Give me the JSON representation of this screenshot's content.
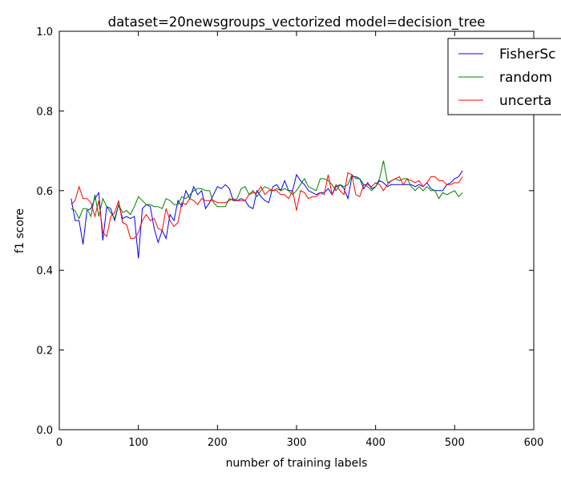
{
  "chart_data": {
    "type": "line",
    "title": "dataset=20newsgroups_vectorized model=decision_tree",
    "xlabel": "number of training labels",
    "ylabel": "f1 score",
    "xlim": [
      0,
      600
    ],
    "ylim": [
      0.0,
      1.0
    ],
    "xticks": [
      "0",
      "100",
      "200",
      "300",
      "400",
      "500",
      "600"
    ],
    "yticks": [
      "0.0",
      "0.2",
      "0.4",
      "0.6",
      "0.8",
      "1.0"
    ],
    "grid": false,
    "legend_position": "top-right",
    "legend_labels": [
      "FisherSc",
      "random",
      "uncerta"
    ],
    "series": [
      {
        "name": "FisherScore",
        "color": "#0000ff",
        "x": [
          15,
          20,
          25,
          30,
          35,
          40,
          45,
          50,
          55,
          60,
          65,
          70,
          75,
          80,
          85,
          90,
          95,
          100,
          105,
          110,
          115,
          120,
          125,
          130,
          135,
          140,
          145,
          150,
          155,
          160,
          165,
          170,
          175,
          180,
          185,
          190,
          195,
          200,
          205,
          210,
          215,
          220,
          225,
          230,
          235,
          240,
          245,
          250,
          255,
          260,
          265,
          270,
          275,
          280,
          285,
          290,
          295,
          300,
          305,
          310,
          315,
          320,
          325,
          330,
          335,
          340,
          345,
          350,
          355,
          360,
          365,
          370,
          375,
          380,
          385,
          390,
          395,
          400,
          405,
          410,
          415,
          420,
          425,
          430,
          435,
          440,
          445,
          450,
          455,
          460,
          465,
          470,
          475,
          480,
          485,
          490,
          495,
          500,
          505,
          510
        ],
        "y": [
          0.58,
          0.525,
          0.525,
          0.465,
          0.55,
          0.555,
          0.58,
          0.595,
          0.475,
          0.56,
          0.555,
          0.525,
          0.565,
          0.53,
          0.535,
          0.53,
          0.535,
          0.43,
          0.555,
          0.565,
          0.56,
          0.505,
          0.47,
          0.5,
          0.48,
          0.54,
          0.525,
          0.575,
          0.56,
          0.6,
          0.58,
          0.61,
          0.59,
          0.6,
          0.555,
          0.57,
          0.59,
          0.61,
          0.605,
          0.615,
          0.605,
          0.575,
          0.575,
          0.58,
          0.575,
          0.56,
          0.555,
          0.6,
          0.585,
          0.575,
          0.57,
          0.61,
          0.615,
          0.6,
          0.625,
          0.6,
          0.6,
          0.64,
          0.625,
          0.615,
          0.6,
          0.595,
          0.59,
          0.595,
          0.595,
          0.605,
          0.59,
          0.61,
          0.615,
          0.605,
          0.58,
          0.635,
          0.635,
          0.63,
          0.605,
          0.62,
          0.605,
          0.61,
          0.625,
          0.62,
          0.61,
          0.615,
          0.615,
          0.615,
          0.615,
          0.615,
          0.615,
          0.61,
          0.615,
          0.61,
          0.62,
          0.605,
          0.6,
          0.6,
          0.6,
          0.615,
          0.62,
          0.63,
          0.635,
          0.65
        ]
      },
      {
        "name": "random",
        "color": "#008000",
        "x": [
          15,
          20,
          25,
          30,
          35,
          40,
          45,
          50,
          55,
          60,
          65,
          70,
          75,
          80,
          85,
          90,
          95,
          100,
          105,
          110,
          115,
          120,
          125,
          130,
          135,
          140,
          145,
          150,
          155,
          160,
          165,
          170,
          175,
          180,
          185,
          190,
          195,
          200,
          205,
          210,
          215,
          220,
          225,
          230,
          235,
          240,
          245,
          250,
          255,
          260,
          265,
          270,
          275,
          280,
          285,
          290,
          295,
          300,
          305,
          310,
          315,
          320,
          325,
          330,
          335,
          340,
          345,
          350,
          355,
          360,
          365,
          370,
          375,
          380,
          385,
          390,
          395,
          400,
          405,
          410,
          415,
          420,
          425,
          430,
          435,
          440,
          445,
          450,
          455,
          460,
          465,
          470,
          475,
          480,
          485,
          490,
          495,
          500,
          505,
          510
        ],
        "y": [
          0.555,
          0.55,
          0.53,
          0.555,
          0.555,
          0.535,
          0.59,
          0.535,
          0.58,
          0.56,
          0.545,
          0.53,
          0.565,
          0.545,
          0.55,
          0.54,
          0.56,
          0.585,
          0.575,
          0.565,
          0.565,
          0.56,
          0.56,
          0.555,
          0.58,
          0.575,
          0.565,
          0.565,
          0.585,
          0.58,
          0.59,
          0.6,
          0.605,
          0.605,
          0.6,
          0.6,
          0.57,
          0.56,
          0.56,
          0.56,
          0.58,
          0.575,
          0.58,
          0.605,
          0.61,
          0.59,
          0.6,
          0.585,
          0.6,
          0.61,
          0.605,
          0.6,
          0.605,
          0.6,
          0.605,
          0.6,
          0.59,
          0.6,
          0.615,
          0.63,
          0.61,
          0.605,
          0.6,
          0.63,
          0.63,
          0.625,
          0.615,
          0.6,
          0.615,
          0.61,
          0.615,
          0.64,
          0.63,
          0.63,
          0.615,
          0.61,
          0.6,
          0.61,
          0.63,
          0.675,
          0.62,
          0.625,
          0.63,
          0.625,
          0.63,
          0.63,
          0.61,
          0.6,
          0.61,
          0.6,
          0.61,
          0.6,
          0.6,
          0.58,
          0.595,
          0.59,
          0.595,
          0.6,
          0.585,
          0.595
        ]
      },
      {
        "name": "uncertainty",
        "color": "#ff0000",
        "x": [
          15,
          20,
          25,
          30,
          35,
          40,
          45,
          50,
          55,
          60,
          65,
          70,
          75,
          80,
          85,
          90,
          95,
          100,
          105,
          110,
          115,
          120,
          125,
          130,
          135,
          140,
          145,
          150,
          155,
          160,
          165,
          170,
          175,
          180,
          185,
          190,
          195,
          200,
          205,
          210,
          215,
          220,
          225,
          230,
          235,
          240,
          245,
          250,
          255,
          260,
          265,
          270,
          275,
          280,
          285,
          290,
          295,
          300,
          305,
          310,
          315,
          320,
          325,
          330,
          335,
          340,
          345,
          350,
          355,
          360,
          365,
          370,
          375,
          380,
          385,
          390,
          395,
          400,
          405,
          410,
          415,
          420,
          425,
          430,
          435,
          440,
          445,
          450,
          455,
          460,
          465,
          470,
          475,
          480,
          485,
          490,
          495,
          500,
          505,
          510
        ],
        "y": [
          0.565,
          0.575,
          0.61,
          0.58,
          0.58,
          0.57,
          0.535,
          0.575,
          0.495,
          0.485,
          0.535,
          0.545,
          0.575,
          0.52,
          0.515,
          0.48,
          0.48,
          0.495,
          0.525,
          0.54,
          0.525,
          0.53,
          0.505,
          0.5,
          0.555,
          0.525,
          0.51,
          0.52,
          0.57,
          0.565,
          0.58,
          0.575,
          0.565,
          0.58,
          0.575,
          0.575,
          0.575,
          0.57,
          0.57,
          0.57,
          0.575,
          0.58,
          0.575,
          0.575,
          0.575,
          0.59,
          0.595,
          0.595,
          0.61,
          0.59,
          0.6,
          0.6,
          0.6,
          0.59,
          0.59,
          0.58,
          0.6,
          0.55,
          0.6,
          0.595,
          0.58,
          0.585,
          0.585,
          0.595,
          0.59,
          0.64,
          0.59,
          0.615,
          0.6,
          0.59,
          0.645,
          0.64,
          0.59,
          0.585,
          0.615,
          0.615,
          0.61,
          0.62,
          0.615,
          0.6,
          0.615,
          0.625,
          0.63,
          0.635,
          0.615,
          0.63,
          0.625,
          0.62,
          0.625,
          0.61,
          0.62,
          0.635,
          0.635,
          0.625,
          0.625,
          0.615,
          0.615,
          0.62,
          0.62,
          0.635
        ]
      }
    ]
  }
}
